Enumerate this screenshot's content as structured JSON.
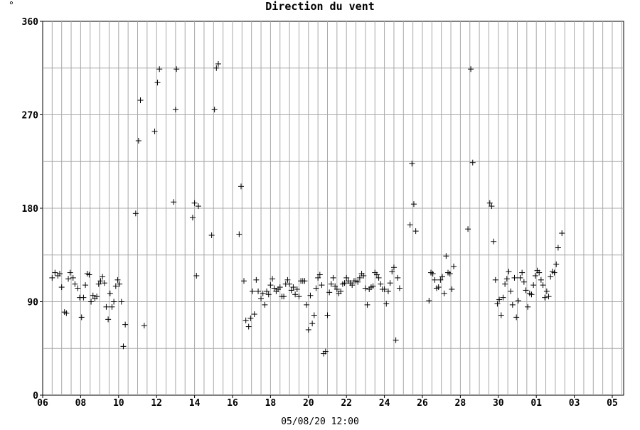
{
  "chart_data": {
    "type": "scatter",
    "title": "Direction du vent",
    "unit_label": "°",
    "xlabel": "05/08/20 12:00",
    "ylabel": "",
    "ylim": [
      0,
      360
    ],
    "xlim": [
      0,
      30.6
    ],
    "grid": true,
    "marker": "+",
    "y_ticks": [
      0,
      90,
      180,
      270,
      360
    ],
    "x_ticks": [
      {
        "label": "06",
        "x": 0
      },
      {
        "label": "08",
        "x": 2
      },
      {
        "label": "10",
        "x": 4
      },
      {
        "label": "12",
        "x": 6
      },
      {
        "label": "14",
        "x": 8
      },
      {
        "label": "16",
        "x": 10
      },
      {
        "label": "18",
        "x": 12
      },
      {
        "label": "20",
        "x": 14
      },
      {
        "label": "22",
        "x": 16
      },
      {
        "label": "24",
        "x": 18
      },
      {
        "label": "26",
        "x": 20
      },
      {
        "label": "28",
        "x": 22
      },
      {
        "label": "30",
        "x": 24
      },
      {
        "label": "01",
        "x": 26
      },
      {
        "label": "03",
        "x": 28
      },
      {
        "label": "05",
        "x": 30
      }
    ],
    "series": [
      {
        "points": [
          [
            0.5,
            113
          ],
          [
            0.65,
            118
          ],
          [
            0.8,
            115
          ],
          [
            0.9,
            117
          ],
          [
            1.0,
            104
          ],
          [
            1.15,
            80
          ],
          [
            1.25,
            79
          ],
          [
            1.35,
            112
          ],
          [
            1.45,
            118
          ],
          [
            1.6,
            113
          ],
          [
            1.7,
            107
          ],
          [
            1.85,
            103
          ],
          [
            1.95,
            94
          ],
          [
            2.05,
            75
          ],
          [
            2.15,
            94
          ],
          [
            2.25,
            106
          ],
          [
            2.35,
            117
          ],
          [
            2.45,
            116
          ],
          [
            2.55,
            90
          ],
          [
            2.65,
            96
          ],
          [
            2.75,
            93
          ],
          [
            2.85,
            95
          ],
          [
            2.95,
            107
          ],
          [
            3.05,
            110
          ],
          [
            3.15,
            114
          ],
          [
            3.25,
            108
          ],
          [
            3.35,
            85
          ],
          [
            3.45,
            73
          ],
          [
            3.55,
            98
          ],
          [
            3.65,
            85
          ],
          [
            3.75,
            90
          ],
          [
            3.85,
            105
          ],
          [
            3.95,
            111
          ],
          [
            4.05,
            107
          ],
          [
            4.15,
            90
          ],
          [
            4.25,
            47
          ],
          [
            4.35,
            68
          ],
          [
            4.9,
            175
          ],
          [
            5.05,
            245
          ],
          [
            5.15,
            284
          ],
          [
            5.35,
            67
          ],
          [
            5.9,
            254
          ],
          [
            6.05,
            301
          ],
          [
            6.15,
            314
          ],
          [
            6.9,
            186
          ],
          [
            7.0,
            275
          ],
          [
            7.05,
            314
          ],
          [
            7.9,
            171
          ],
          [
            8.0,
            185
          ],
          [
            8.1,
            115
          ],
          [
            8.2,
            182
          ],
          [
            8.9,
            154
          ],
          [
            9.05,
            275
          ],
          [
            9.15,
            315
          ],
          [
            9.25,
            319
          ],
          [
            10.35,
            155
          ],
          [
            10.45,
            201
          ],
          [
            10.6,
            110
          ],
          [
            10.7,
            72
          ],
          [
            10.85,
            66
          ],
          [
            10.95,
            74
          ],
          [
            11.05,
            100
          ],
          [
            11.15,
            78
          ],
          [
            11.25,
            111
          ],
          [
            11.35,
            100
          ],
          [
            11.5,
            93
          ],
          [
            11.6,
            98
          ],
          [
            11.7,
            87
          ],
          [
            11.8,
            100
          ],
          [
            11.9,
            97
          ],
          [
            12.0,
            106
          ],
          [
            12.1,
            112
          ],
          [
            12.2,
            103
          ],
          [
            12.3,
            100
          ],
          [
            12.4,
            102
          ],
          [
            12.5,
            104
          ],
          [
            12.6,
            95
          ],
          [
            12.7,
            95
          ],
          [
            12.8,
            107
          ],
          [
            12.9,
            111
          ],
          [
            13.0,
            107
          ],
          [
            13.1,
            101
          ],
          [
            13.2,
            104
          ],
          [
            13.3,
            97
          ],
          [
            13.4,
            102
          ],
          [
            13.5,
            95
          ],
          [
            13.6,
            110
          ],
          [
            13.7,
            110
          ],
          [
            13.8,
            110
          ],
          [
            13.9,
            87
          ],
          [
            14.0,
            63
          ],
          [
            14.1,
            96
          ],
          [
            14.2,
            69
          ],
          [
            14.3,
            77
          ],
          [
            14.4,
            103
          ],
          [
            14.5,
            113
          ],
          [
            14.6,
            116
          ],
          [
            14.7,
            106
          ],
          [
            14.8,
            40
          ],
          [
            14.9,
            42
          ],
          [
            15.0,
            77
          ],
          [
            15.1,
            99
          ],
          [
            15.2,
            107
          ],
          [
            15.3,
            113
          ],
          [
            15.4,
            105
          ],
          [
            15.5,
            102
          ],
          [
            15.6,
            98
          ],
          [
            15.7,
            100
          ],
          [
            15.8,
            107
          ],
          [
            15.9,
            108
          ],
          [
            16.0,
            113
          ],
          [
            16.1,
            110
          ],
          [
            16.2,
            108
          ],
          [
            16.3,
            106
          ],
          [
            16.4,
            110
          ],
          [
            16.5,
            110
          ],
          [
            16.6,
            109
          ],
          [
            16.7,
            113
          ],
          [
            16.8,
            117
          ],
          [
            16.9,
            115
          ],
          [
            17.0,
            103
          ],
          [
            17.1,
            87
          ],
          [
            17.2,
            102
          ],
          [
            17.3,
            104
          ],
          [
            17.4,
            105
          ],
          [
            17.5,
            118
          ],
          [
            17.6,
            116
          ],
          [
            17.7,
            113
          ],
          [
            17.8,
            107
          ],
          [
            17.9,
            102
          ],
          [
            18.0,
            102
          ],
          [
            18.1,
            88
          ],
          [
            18.2,
            100
          ],
          [
            18.3,
            108
          ],
          [
            18.4,
            119
          ],
          [
            18.5,
            123
          ],
          [
            18.6,
            53
          ],
          [
            18.7,
            113
          ],
          [
            18.8,
            103
          ],
          [
            19.35,
            164
          ],
          [
            19.45,
            223
          ],
          [
            19.55,
            184
          ],
          [
            19.65,
            158
          ],
          [
            20.35,
            91
          ],
          [
            20.45,
            118
          ],
          [
            20.55,
            117
          ],
          [
            20.65,
            111
          ],
          [
            20.75,
            103
          ],
          [
            20.85,
            104
          ],
          [
            20.95,
            111
          ],
          [
            21.05,
            114
          ],
          [
            21.15,
            98
          ],
          [
            21.25,
            134
          ],
          [
            21.35,
            118
          ],
          [
            21.45,
            117
          ],
          [
            21.55,
            102
          ],
          [
            21.65,
            124
          ],
          [
            22.4,
            160
          ],
          [
            22.55,
            314
          ],
          [
            22.65,
            224
          ],
          [
            23.55,
            185
          ],
          [
            23.65,
            182
          ],
          [
            23.75,
            148
          ],
          [
            23.85,
            111
          ],
          [
            23.95,
            88
          ],
          [
            24.05,
            92
          ],
          [
            24.15,
            77
          ],
          [
            24.25,
            94
          ],
          [
            24.35,
            107
          ],
          [
            24.45,
            112
          ],
          [
            24.55,
            119
          ],
          [
            24.65,
            100
          ],
          [
            24.75,
            87
          ],
          [
            24.85,
            113
          ],
          [
            24.95,
            75
          ],
          [
            25.05,
            91
          ],
          [
            25.15,
            113
          ],
          [
            25.25,
            118
          ],
          [
            25.35,
            109
          ],
          [
            25.45,
            101
          ],
          [
            25.55,
            85
          ],
          [
            25.65,
            98
          ],
          [
            25.75,
            97
          ],
          [
            25.85,
            106
          ],
          [
            25.95,
            115
          ],
          [
            26.05,
            120
          ],
          [
            26.15,
            118
          ],
          [
            26.25,
            111
          ],
          [
            26.35,
            106
          ],
          [
            26.45,
            94
          ],
          [
            26.55,
            100
          ],
          [
            26.65,
            95
          ],
          [
            26.75,
            114
          ],
          [
            26.85,
            119
          ],
          [
            26.95,
            118
          ],
          [
            27.05,
            126
          ],
          [
            27.15,
            142
          ],
          [
            27.35,
            156
          ]
        ]
      }
    ]
  }
}
